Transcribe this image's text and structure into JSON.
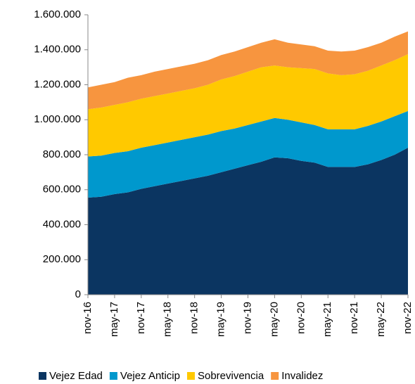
{
  "chart_data": {
    "type": "stacked_area",
    "categories": [
      "nov-16",
      null,
      "may-17",
      null,
      "nov-17",
      null,
      "may-18",
      null,
      "nov-18",
      null,
      "may-19",
      null,
      "nov-19",
      null,
      "may-20",
      null,
      "nov-20",
      null,
      "may-21",
      null,
      "nov-21",
      null,
      "may-22",
      null,
      "nov-22"
    ],
    "series": [
      {
        "name": "Vejez Edad",
        "color": "#0b3561",
        "values": [
          555,
          560,
          575,
          585,
          605,
          620,
          635,
          650,
          665,
          680,
          700,
          720,
          740,
          760,
          785,
          780,
          765,
          755,
          730,
          730,
          730,
          745,
          770,
          800,
          840
        ]
      },
      {
        "name": "Vejez Anticip",
        "color": "#0098cd",
        "values": [
          235,
          235,
          235,
          235,
          235,
          235,
          235,
          235,
          235,
          235,
          235,
          230,
          230,
          230,
          225,
          220,
          220,
          215,
          215,
          215,
          215,
          220,
          220,
          220,
          210
        ]
      },
      {
        "name": "Sobrevivencia",
        "color": "#ffc900",
        "values": [
          270,
          275,
          275,
          280,
          280,
          280,
          280,
          280,
          280,
          285,
          295,
          300,
          305,
          310,
          300,
          300,
          310,
          320,
          320,
          310,
          315,
          315,
          320,
          320,
          325
        ]
      },
      {
        "name": "Invalidez",
        "color": "#f7953f",
        "values": [
          125,
          130,
          130,
          140,
          135,
          140,
          140,
          140,
          140,
          140,
          140,
          140,
          140,
          140,
          150,
          140,
          135,
          130,
          130,
          135,
          135,
          135,
          130,
          135,
          130
        ]
      }
    ],
    "ylim": [
      0,
      1600
    ],
    "yticks": [
      0,
      {
        "value": 200,
        "label": "200.000"
      },
      {
        "value": 400,
        "label": "400.000"
      },
      {
        "value": 600,
        "label": "600.000"
      },
      {
        "value": 800,
        "label": "800.000"
      },
      {
        "value": 1000,
        "label": "1.000.000"
      },
      {
        "value": 1200,
        "label": "1.200.000"
      },
      {
        "value": 1400,
        "label": "1.400.000"
      },
      {
        "value": 1600,
        "label": "1.600.000"
      }
    ],
    "legend": "bottom"
  }
}
